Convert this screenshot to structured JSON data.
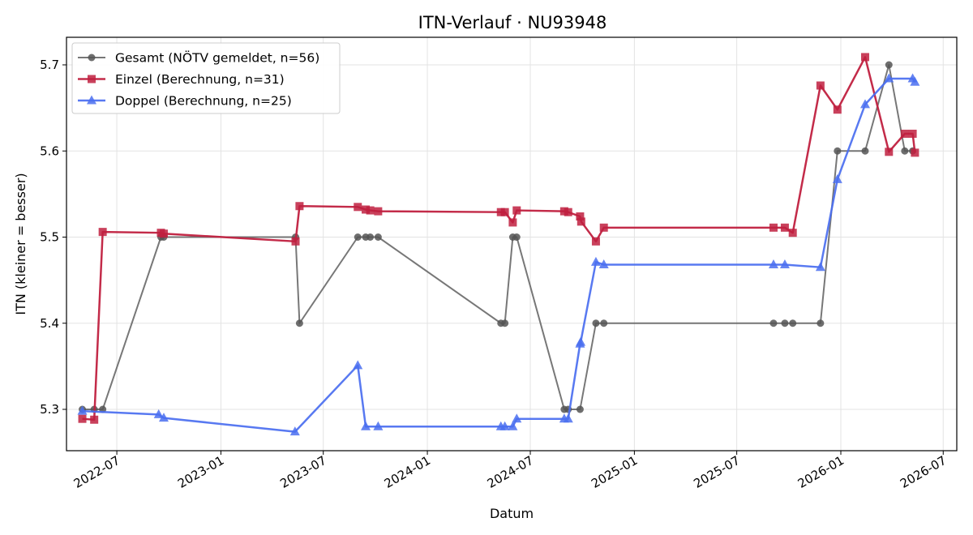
{
  "chart_data": {
    "type": "line",
    "title": "ITN-Verlauf · NU93948",
    "xlabel": "Datum",
    "ylabel": "ITN  (kleiner = besser)",
    "xlim": [
      "2022-04-03",
      "2026-07-25"
    ],
    "ylim": [
      5.252,
      5.732
    ],
    "x_ticks": [
      "2022-07",
      "2023-01",
      "2023-07",
      "2024-01",
      "2024-07",
      "2025-01",
      "2025-07",
      "2026-01",
      "2026-07"
    ],
    "y_ticks": [
      5.3,
      5.4,
      5.5,
      5.6,
      5.7
    ],
    "grid": true,
    "legend_position": "top-left",
    "series": [
      {
        "name": "Gesamt (NÖTV gemeldet, n=56)",
        "color": "#555555",
        "marker": "circle",
        "points": [
          [
            "2022-05-01",
            5.3
          ],
          [
            "2022-05-22",
            5.3
          ],
          [
            "2022-06-06",
            5.3
          ],
          [
            "2022-09-17",
            5.5
          ],
          [
            "2022-09-22",
            5.5
          ],
          [
            "2023-05-13",
            5.5
          ],
          [
            "2023-05-20",
            5.4
          ],
          [
            "2023-08-31",
            5.5
          ],
          [
            "2023-09-14",
            5.5
          ],
          [
            "2023-09-22",
            5.5
          ],
          [
            "2023-10-06",
            5.5
          ],
          [
            "2024-05-10",
            5.4
          ],
          [
            "2024-05-17",
            5.4
          ],
          [
            "2024-05-31",
            5.5
          ],
          [
            "2024-06-07",
            5.5
          ],
          [
            "2024-08-30",
            5.3
          ],
          [
            "2024-09-06",
            5.3
          ],
          [
            "2024-09-27",
            5.3
          ],
          [
            "2024-10-25",
            5.4
          ],
          [
            "2024-11-08",
            5.4
          ],
          [
            "2025-09-04",
            5.4
          ],
          [
            "2025-09-24",
            5.4
          ],
          [
            "2025-10-08",
            5.4
          ],
          [
            "2025-11-26",
            5.4
          ],
          [
            "2025-12-26",
            5.6
          ],
          [
            "2026-02-13",
            5.6
          ],
          [
            "2026-03-27",
            5.7
          ],
          [
            "2026-04-24",
            5.6
          ],
          [
            "2026-05-08",
            5.6
          ]
        ]
      },
      {
        "name": "Einzel (Berechnung, n=31)",
        "color": "#c0203f",
        "marker": "square",
        "points": [
          [
            "2022-05-01",
            5.289
          ],
          [
            "2022-05-22",
            5.288
          ],
          [
            "2022-06-06",
            5.506
          ],
          [
            "2022-09-17",
            5.505
          ],
          [
            "2022-09-22",
            5.504
          ],
          [
            "2023-05-13",
            5.495
          ],
          [
            "2023-05-20",
            5.536
          ],
          [
            "2023-08-31",
            5.535
          ],
          [
            "2023-09-14",
            5.532
          ],
          [
            "2023-09-22",
            5.531
          ],
          [
            "2023-10-06",
            5.53
          ],
          [
            "2024-05-10",
            5.529
          ],
          [
            "2024-05-17",
            5.529
          ],
          [
            "2024-05-31",
            5.517
          ],
          [
            "2024-06-07",
            5.531
          ],
          [
            "2024-08-30",
            5.53
          ],
          [
            "2024-09-06",
            5.529
          ],
          [
            "2024-09-27",
            5.524
          ],
          [
            "2024-09-29",
            5.518
          ],
          [
            "2024-10-25",
            5.495
          ],
          [
            "2024-11-08",
            5.511
          ],
          [
            "2025-09-04",
            5.511
          ],
          [
            "2025-09-24",
            5.511
          ],
          [
            "2025-10-08",
            5.505
          ],
          [
            "2025-11-26",
            5.676
          ],
          [
            "2025-12-26",
            5.648
          ],
          [
            "2026-02-13",
            5.709
          ],
          [
            "2026-03-27",
            5.599
          ],
          [
            "2026-04-24",
            5.62
          ],
          [
            "2026-05-08",
            5.62
          ],
          [
            "2026-05-12",
            5.598
          ]
        ]
      },
      {
        "name": "Doppel (Berechnung, n=25)",
        "color": "#4a6ef0",
        "marker": "triangle",
        "points": [
          [
            "2022-05-01",
            5.298
          ],
          [
            "2022-09-13",
            5.294
          ],
          [
            "2022-09-22",
            5.29
          ],
          [
            "2023-05-12",
            5.274
          ],
          [
            "2023-08-31",
            5.351
          ],
          [
            "2023-09-14",
            5.28
          ],
          [
            "2023-10-06",
            5.28
          ],
          [
            "2024-05-10",
            5.28
          ],
          [
            "2024-05-17",
            5.28
          ],
          [
            "2024-05-31",
            5.28
          ],
          [
            "2024-06-07",
            5.289
          ],
          [
            "2024-08-30",
            5.289
          ],
          [
            "2024-09-06",
            5.289
          ],
          [
            "2024-09-27",
            5.376
          ],
          [
            "2024-09-28",
            5.378
          ],
          [
            "2024-10-25",
            5.471
          ],
          [
            "2024-11-08",
            5.468
          ],
          [
            "2025-09-04",
            5.468
          ],
          [
            "2025-09-24",
            5.468
          ],
          [
            "2025-11-26",
            5.465
          ],
          [
            "2025-12-26",
            5.567
          ],
          [
            "2026-02-13",
            5.654
          ],
          [
            "2026-03-27",
            5.684
          ],
          [
            "2026-05-08",
            5.684
          ],
          [
            "2026-05-12",
            5.68
          ]
        ]
      }
    ]
  }
}
